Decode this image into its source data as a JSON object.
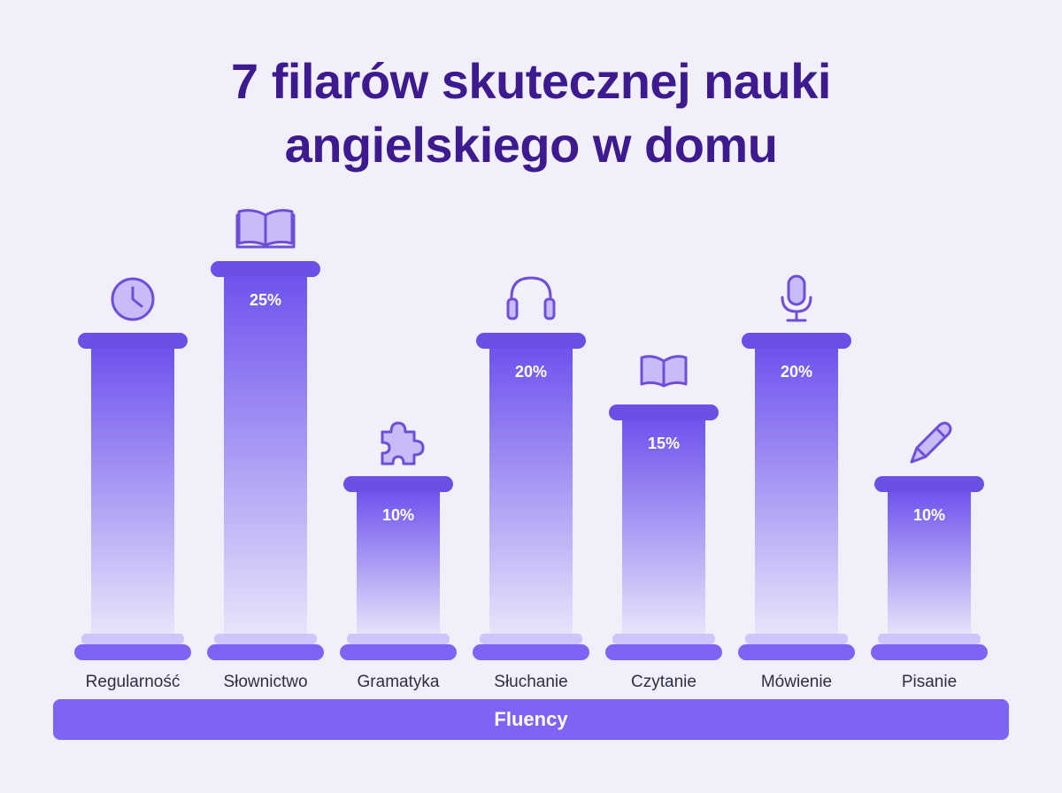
{
  "title_line1": "7 filarów skutecznej nauki",
  "title_line2": "angielskiego w domu",
  "base_label": "Fluency",
  "colors": {
    "title": "#3d1a8f",
    "capital": "#6c4fe4",
    "column_top": "#6f53ee",
    "column_bottom": "#e9e4fb",
    "icon_stroke": "#6f4fd8",
    "icon_fill": "#c9bbf8",
    "base": "#7f63f4",
    "label": "#2f2f44"
  },
  "chart_data": {
    "type": "bar",
    "categories": [
      "Regularność",
      "Słownictwo",
      "Gramatyka",
      "Słuchanie",
      "Czytanie",
      "Mówienie",
      "Pisanie"
    ],
    "values": [
      20,
      25,
      10,
      20,
      15,
      20,
      10
    ],
    "value_labels": [
      "",
      "25%",
      "10%",
      "20%",
      "15%",
      "20%",
      "10%"
    ],
    "icons": [
      "clock-icon",
      "open-book-icon",
      "puzzle-icon",
      "headphones-icon",
      "book-icon",
      "microphone-icon",
      "pencil-icon"
    ],
    "ylim": [
      0,
      25
    ],
    "xlabel": "",
    "ylabel": "",
    "grid": false,
    "legend": "none"
  }
}
